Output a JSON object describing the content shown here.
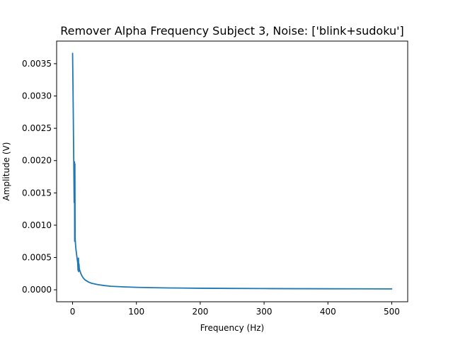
{
  "chart_data": {
    "type": "line",
    "title": "Remover Alpha Frequency Subject 3, Noise: ['blink+sudoku']",
    "xlabel": "Frequency (Hz)",
    "ylabel": "Amplitude (V)",
    "xlim": [
      -25,
      525
    ],
    "ylim": [
      -0.000185,
      0.00385
    ],
    "xticks": [
      0,
      100,
      200,
      300,
      400,
      500
    ],
    "xtick_labels": [
      "0",
      "100",
      "200",
      "300",
      "400",
      "500"
    ],
    "yticks": [
      0.0,
      0.0005,
      0.001,
      0.0015,
      0.002,
      0.0025,
      0.003,
      0.0035
    ],
    "ytick_labels": [
      "0.0000",
      "0.0005",
      "0.0010",
      "0.0015",
      "0.0020",
      "0.0025",
      "0.0030",
      "0.0035"
    ],
    "grid": false,
    "colors": {
      "series": "#1f77b4"
    },
    "series": [
      {
        "x": [
          0,
          0.5,
          1,
          1.5,
          2,
          2.5,
          3,
          3.3,
          3.6,
          4,
          4.5,
          5,
          6,
          7,
          8,
          8.6,
          9.2,
          9.6,
          10,
          10.5,
          11,
          12,
          13,
          15,
          17,
          20,
          25,
          30,
          40,
          50,
          60,
          80,
          100,
          125,
          150,
          200,
          250,
          300,
          350,
          400,
          450,
          500
        ],
        "y": [
          0.00366,
          0.00325,
          0.0028,
          0.0023,
          0.00186,
          0.00135,
          0.00198,
          0.00075,
          0.00195,
          0.0008,
          0.00072,
          0.00065,
          0.00057,
          0.00049,
          0.00042,
          0.0003,
          0.00049,
          0.00028,
          0.0004,
          0.00033,
          0.00031,
          0.00028,
          0.00025,
          0.00021,
          0.00018,
          0.00015,
          0.00012,
          0.0001,
          8e-05,
          6.5e-05,
          5.5e-05,
          4.5e-05,
          3.8e-05,
          3.3e-05,
          2.9e-05,
          2.4e-05,
          2.1e-05,
          1.9e-05,
          1.7e-05,
          1.6e-05,
          1.5e-05,
          1.4e-05
        ]
      }
    ]
  }
}
